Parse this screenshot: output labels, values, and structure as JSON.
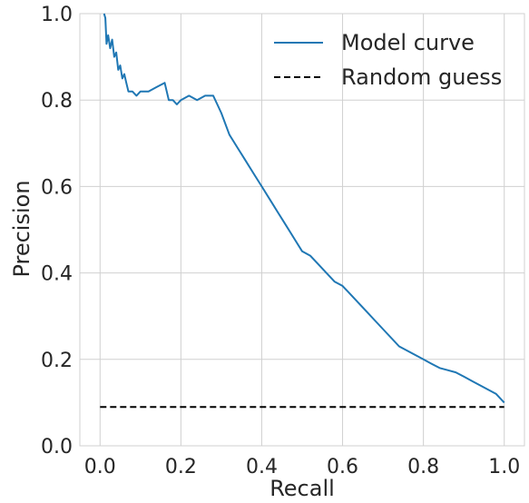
{
  "chart_data": {
    "type": "line",
    "xlabel": "Recall",
    "ylabel": "Precision",
    "xlim": [
      -0.05,
      1.05
    ],
    "ylim": [
      0.0,
      1.0
    ],
    "xticks": [
      0.0,
      0.2,
      0.4,
      0.6,
      0.8,
      1.0
    ],
    "yticks": [
      0.0,
      0.2,
      0.4,
      0.6,
      0.8,
      1.0
    ],
    "xtick_labels": [
      "0.0",
      "0.2",
      "0.4",
      "0.6",
      "0.8",
      "1.0"
    ],
    "ytick_labels": [
      "0.0",
      "0.2",
      "0.4",
      "0.6",
      "0.8",
      "1.0"
    ],
    "grid": true,
    "legend_position": "top-right",
    "series": [
      {
        "name": "Model curve",
        "color": "#1f77b4",
        "style": "solid",
        "x": [
          0.01,
          0.013,
          0.016,
          0.02,
          0.025,
          0.03,
          0.035,
          0.04,
          0.045,
          0.05,
          0.055,
          0.06,
          0.065,
          0.07,
          0.08,
          0.09,
          0.1,
          0.12,
          0.14,
          0.16,
          0.17,
          0.18,
          0.19,
          0.2,
          0.22,
          0.24,
          0.26,
          0.28,
          0.29,
          0.3,
          0.32,
          0.34,
          0.36,
          0.38,
          0.4,
          0.42,
          0.44,
          0.46,
          0.48,
          0.5,
          0.52,
          0.54,
          0.56,
          0.58,
          0.6,
          0.62,
          0.64,
          0.66,
          0.68,
          0.7,
          0.72,
          0.74,
          0.76,
          0.78,
          0.8,
          0.82,
          0.84,
          0.86,
          0.88,
          0.9,
          0.92,
          0.94,
          0.96,
          0.98,
          1.0
        ],
        "y": [
          1.0,
          0.99,
          0.93,
          0.95,
          0.92,
          0.94,
          0.9,
          0.91,
          0.87,
          0.88,
          0.85,
          0.86,
          0.84,
          0.82,
          0.82,
          0.81,
          0.82,
          0.82,
          0.83,
          0.84,
          0.8,
          0.8,
          0.79,
          0.8,
          0.81,
          0.8,
          0.81,
          0.81,
          0.79,
          0.77,
          0.72,
          0.69,
          0.66,
          0.63,
          0.6,
          0.57,
          0.54,
          0.51,
          0.48,
          0.45,
          0.44,
          0.42,
          0.4,
          0.38,
          0.37,
          0.35,
          0.33,
          0.31,
          0.29,
          0.27,
          0.25,
          0.23,
          0.22,
          0.21,
          0.2,
          0.19,
          0.18,
          0.175,
          0.17,
          0.16,
          0.15,
          0.14,
          0.13,
          0.12,
          0.1
        ]
      },
      {
        "name": "Random guess",
        "color": "#000000",
        "style": "dashed",
        "x": [
          0.0,
          1.0
        ],
        "y": [
          0.09,
          0.09
        ]
      }
    ]
  }
}
